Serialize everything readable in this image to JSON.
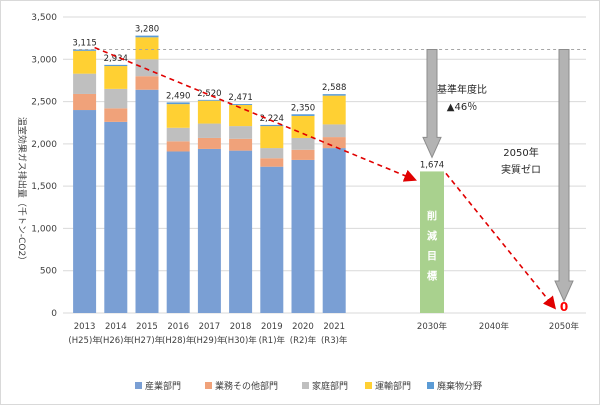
{
  "chart_data": {
    "type": "bar",
    "stacked": true,
    "ylabel": "温室効果ガス排出量（千トン-CO2）",
    "ylim": [
      0,
      3500
    ],
    "yticks": [
      "0",
      "500",
      "1,000",
      "1,500",
      "2,000",
      "2,500",
      "3,000",
      "3,500"
    ],
    "categories": [
      {
        "year": "2013",
        "era": "(H25)年"
      },
      {
        "year": "2014",
        "era": "(H26)年"
      },
      {
        "year": "2015",
        "era": "(H27)年"
      },
      {
        "year": "2016",
        "era": "(H28)年"
      },
      {
        "year": "2017",
        "era": "(H29)年"
      },
      {
        "year": "2018",
        "era": "(H30)年"
      },
      {
        "year": "2019",
        "era": "(R1)年"
      },
      {
        "year": "2020",
        "era": "(R2)年"
      },
      {
        "year": "2021",
        "era": "(R3)年"
      }
    ],
    "series": [
      {
        "name": "産業部門",
        "color": "#7a9fd4",
        "values": [
          2400,
          2260,
          2640,
          1910,
          1940,
          1920,
          1730,
          1810,
          1950
        ]
      },
      {
        "name": "業務その他部門",
        "color": "#f0a27a",
        "values": [
          190,
          160,
          160,
          120,
          130,
          140,
          100,
          120,
          130
        ]
      },
      {
        "name": "家庭部門",
        "color": "#bfbfbf",
        "values": [
          240,
          230,
          200,
          160,
          170,
          150,
          120,
          140,
          150
        ]
      },
      {
        "name": "運輸部門",
        "color": "#ffd033",
        "values": [
          270,
          270,
          260,
          280,
          270,
          250,
          260,
          260,
          340
        ]
      },
      {
        "name": "廃棄物分野",
        "color": "#5b9bd5",
        "values": [
          15,
          14,
          20,
          20,
          10,
          11,
          14,
          20,
          18
        ]
      }
    ],
    "totals": [
      "3,115",
      "2,934",
      "3,280",
      "2,490",
      "2,520",
      "2,471",
      "2,224",
      "2,350",
      "2,588"
    ],
    "target": {
      "label": "2030年",
      "value": 1674,
      "value_label": "1,674",
      "text": "削減目標",
      "color": "#a9d18e"
    },
    "future_ticks": [
      "2030年",
      "2040年",
      "2050年"
    ],
    "zero": {
      "value": 0,
      "label": "0",
      "color": "#ff0000"
    },
    "annotation_2030": {
      "line1": "基準年度比",
      "line2": "▲46％"
    },
    "annotation_2050": {
      "line1": "2050年",
      "line2": "実質ゼロ"
    },
    "reference_line": 3115,
    "legend_position": "bottom",
    "grid": true
  }
}
